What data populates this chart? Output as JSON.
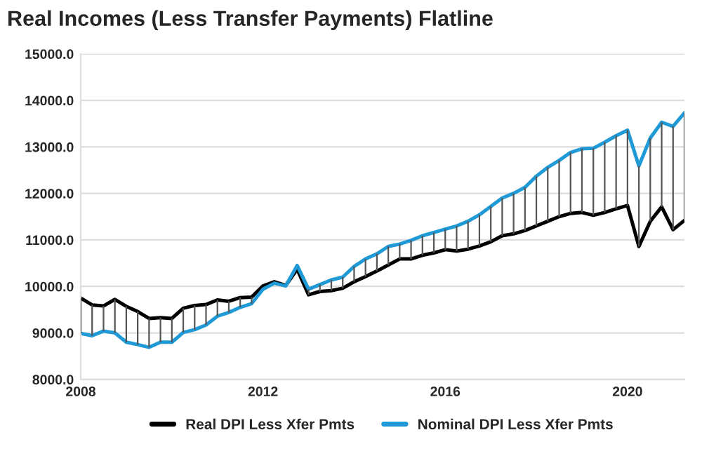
{
  "chart_data": {
    "type": "line",
    "title": "Real Incomes (Less Transfer Payments) Flatline",
    "x": [
      2008,
      2008.25,
      2008.5,
      2008.75,
      2009,
      2009.25,
      2009.5,
      2009.75,
      2010,
      2010.25,
      2010.5,
      2010.75,
      2011,
      2011.25,
      2011.5,
      2011.75,
      2012,
      2012.25,
      2012.5,
      2012.75,
      2013,
      2013.25,
      2013.5,
      2013.75,
      2014,
      2014.25,
      2014.5,
      2014.75,
      2015,
      2015.25,
      2015.5,
      2015.75,
      2016,
      2016.25,
      2016.5,
      2016.75,
      2017,
      2017.25,
      2017.5,
      2017.75,
      2018,
      2018.25,
      2018.5,
      2018.75,
      2019,
      2019.25,
      2019.5,
      2019.75,
      2020,
      2020.25,
      2020.5,
      2020.75,
      2021,
      2021.25
    ],
    "series": [
      {
        "name": "Real DPI Less Xfer Pmts",
        "color": "#000000",
        "values": [
          9750,
          9600,
          9580,
          9720,
          9570,
          9460,
          9310,
          9330,
          9310,
          9530,
          9590,
          9610,
          9710,
          9680,
          9760,
          9770,
          10010,
          10100,
          10020,
          10370,
          9820,
          9890,
          9910,
          9960,
          10100,
          10210,
          10330,
          10460,
          10590,
          10590,
          10670,
          10720,
          10790,
          10760,
          10800,
          10870,
          10960,
          11090,
          11130,
          11200,
          11300,
          11400,
          11500,
          11570,
          11590,
          11530,
          11590,
          11670,
          11740,
          10860,
          11400,
          11710,
          11220,
          11420
        ],
        "errors": [
          [
            8990,
            9750
          ],
          [
            8940,
            9600
          ],
          [
            9040,
            9580
          ],
          [
            9000,
            9720
          ],
          [
            8800,
            9570
          ],
          [
            8750,
            9460
          ],
          [
            8690,
            9310
          ],
          [
            8800,
            9330
          ],
          [
            8800,
            9310
          ],
          [
            9010,
            9530
          ],
          [
            9070,
            9590
          ],
          [
            9170,
            9610
          ],
          [
            9360,
            9710
          ],
          [
            9440,
            9680
          ],
          [
            9550,
            9760
          ],
          [
            9630,
            9770
          ],
          null,
          null,
          null,
          null,
          [
            9820,
            9940
          ],
          [
            9890,
            10040
          ],
          [
            9910,
            10140
          ],
          [
            9960,
            10200
          ],
          [
            10100,
            10430
          ],
          [
            10210,
            10590
          ],
          [
            10330,
            10700
          ],
          [
            10460,
            10860
          ],
          [
            10590,
            10910
          ],
          [
            10590,
            10990
          ],
          [
            10670,
            11090
          ],
          [
            10720,
            11160
          ],
          [
            10790,
            11230
          ],
          [
            10760,
            11300
          ],
          [
            10800,
            11400
          ],
          [
            10870,
            11540
          ],
          [
            10960,
            11720
          ],
          [
            11090,
            11900
          ],
          [
            11130,
            12000
          ],
          [
            11200,
            12130
          ],
          [
            11300,
            12370
          ],
          [
            11400,
            12560
          ],
          [
            11500,
            12710
          ],
          [
            11570,
            12880
          ],
          [
            11590,
            12960
          ],
          [
            11530,
            12970
          ],
          [
            11590,
            13100
          ],
          [
            11670,
            13240
          ],
          [
            11740,
            13360
          ],
          [
            10860,
            12590
          ],
          [
            11400,
            13190
          ],
          [
            11710,
            13530
          ],
          [
            11220,
            13440
          ],
          [
            11420,
            13730
          ]
        ]
      },
      {
        "name": "Nominal DPI Less Xfer Pmts",
        "color": "#1f9ad6",
        "values": [
          8990,
          8940,
          9040,
          9000,
          8800,
          8750,
          8690,
          8800,
          8800,
          9010,
          9070,
          9170,
          9360,
          9440,
          9550,
          9630,
          9940,
          10070,
          10010,
          10450,
          9940,
          10040,
          10140,
          10200,
          10430,
          10590,
          10700,
          10860,
          10910,
          10990,
          11090,
          11160,
          11230,
          11300,
          11400,
          11540,
          11720,
          11900,
          12000,
          12130,
          12370,
          12560,
          12710,
          12880,
          12960,
          12970,
          13100,
          13240,
          13360,
          12590,
          13190,
          13530,
          13440,
          13730
        ]
      }
    ],
    "xlim": [
      2008,
      2021.25
    ],
    "xticks": [
      2008,
      2012,
      2016,
      2020
    ],
    "ylim": [
      8000,
      15000
    ],
    "yticks": [
      {
        "value": 8000,
        "label": "8000.0"
      },
      {
        "value": 9000,
        "label": "9000.0"
      },
      {
        "value": 10000,
        "label": "10000.0"
      },
      {
        "value": 11000,
        "label": "11000.0"
      },
      {
        "value": 12000,
        "label": "12000.0"
      },
      {
        "value": 13000,
        "label": "13000.0"
      },
      {
        "value": 14000,
        "label": "14000.0"
      },
      {
        "value": 15000,
        "label": "15000.0"
      }
    ],
    "grid": "y",
    "legend": "bottom"
  }
}
